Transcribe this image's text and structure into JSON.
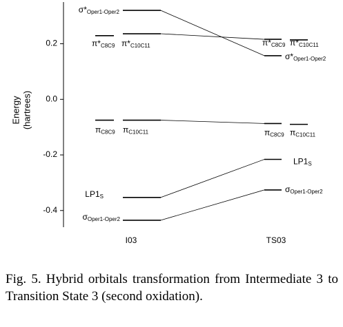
{
  "chart_data": {
    "type": "energy-levels",
    "ylabel": [
      "Energy",
      "(hartrees)"
    ],
    "categories": [
      "I03",
      "TS03"
    ],
    "ylim": [
      -0.46,
      0.35
    ],
    "yticks": [
      -0.4,
      -0.2,
      {
        "value": 0,
        "label": "0.0"
      },
      0.2
    ],
    "series": [
      {
        "name": "σ*",
        "sub": "Oper1-Oper2",
        "values": [
          0.32,
          0.157
        ]
      },
      {
        "name": "π*",
        "sub": "C8C9",
        "values": [
          0.229,
          0.216
        ]
      },
      {
        "name": "π*",
        "sub": "C10C11",
        "values": [
          0.236,
          0.214
        ]
      },
      {
        "name": "π",
        "sub": "C8C9",
        "values": [
          -0.075,
          -0.087
        ]
      },
      {
        "name": "π",
        "sub": "C10C11",
        "values": [
          -0.075,
          -0.09
        ]
      },
      {
        "name": "LP1",
        "sub": "S",
        "values": [
          -0.353,
          -0.216
        ]
      },
      {
        "name": "σ",
        "sub": "Oper1-Oper2",
        "values": [
          -0.435,
          -0.326
        ]
      }
    ]
  },
  "caption": "Fig. 5. Hybrid orbitals transformation from Intermediate 3 to Transition State 3 (second oxidation)."
}
